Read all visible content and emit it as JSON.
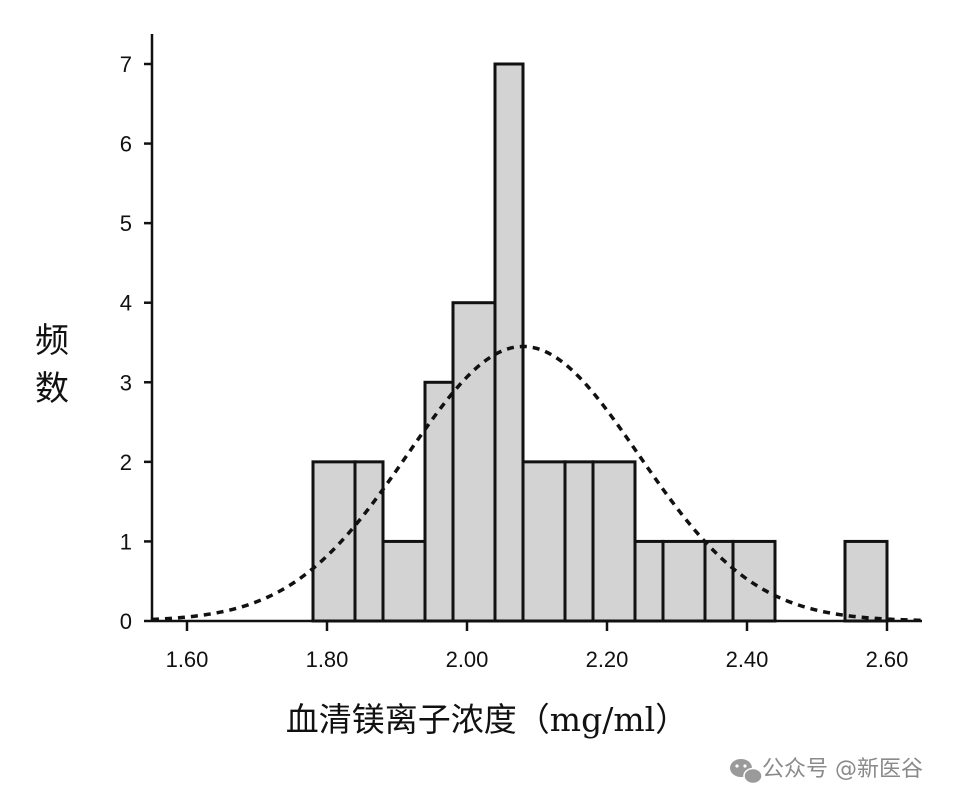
{
  "chart_data": {
    "type": "bar",
    "title": "",
    "xlabel": "血清镁离子浓度（mg/ml）",
    "ylabel": "频数",
    "bin_edges": [
      1.78,
      1.84,
      1.88,
      1.94,
      1.98,
      2.04,
      2.08,
      2.14,
      2.18,
      2.24,
      2.28,
      2.34,
      2.38,
      2.44,
      2.54,
      2.6
    ],
    "values": [
      2,
      2,
      1,
      3,
      4,
      7,
      2,
      2,
      2,
      1,
      1,
      1,
      1,
      0,
      1
    ],
    "xlim": [
      1.55,
      2.65
    ],
    "ylim": [
      0,
      7.3
    ],
    "xticks": [
      1.6,
      1.8,
      2.0,
      2.2,
      2.4,
      2.6
    ],
    "xtick_labels": [
      "1.60",
      "1.80",
      "2.00",
      "2.20",
      "2.40",
      "2.60"
    ],
    "yticks": [
      0,
      1,
      2,
      3,
      4,
      5,
      6,
      7
    ],
    "ytick_labels": [
      "0",
      "1",
      "2",
      "3",
      "4",
      "5",
      "6",
      "7"
    ],
    "normal_curve": {
      "mean": 2.08,
      "sd": 0.165,
      "peak": 3.45,
      "style": "dashed"
    },
    "bar_fill": "#d3d3d3",
    "bar_stroke": "#111111",
    "grid": false,
    "legend": "none"
  },
  "watermark": {
    "text": "公众号 @新医谷"
  }
}
